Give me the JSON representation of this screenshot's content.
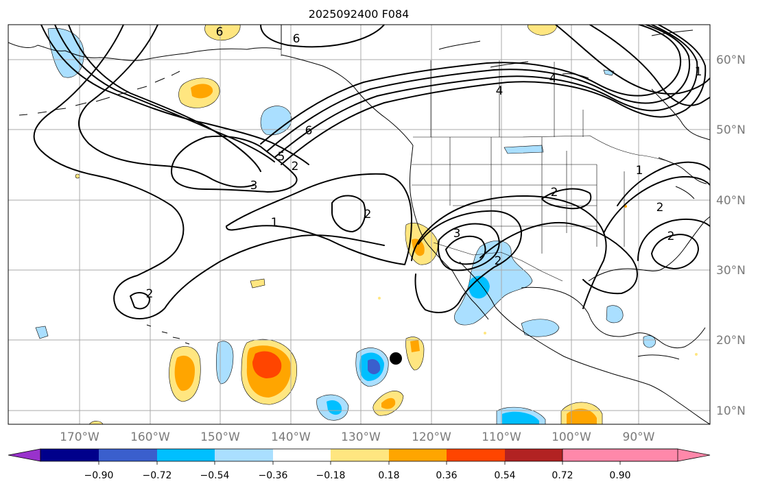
{
  "title": "2025092400 F084",
  "longitude_labels": [
    "170°W",
    "160°W",
    "150°W",
    "140°W",
    "130°W",
    "120°W",
    "110°W",
    "100°W",
    "90°W"
  ],
  "latitude_labels": [
    "60°N",
    "50°N",
    "40°N",
    "30°N",
    "20°N",
    "10°N"
  ],
  "colorbar": {
    "bins": [
      {
        "color": "#9932cc"
      },
      {
        "color": "#00008b"
      },
      {
        "color": "#3a5fcd"
      },
      {
        "color": "#00bfff"
      },
      {
        "color": "#aadfff"
      },
      {
        "color": "#ffffff"
      },
      {
        "color": "#ffe680"
      },
      {
        "color": "#ffa500"
      },
      {
        "color": "#ff4500"
      },
      {
        "color": "#b22222"
      },
      {
        "color": "#ff88aa"
      }
    ],
    "tick_labels": [
      "−0.90",
      "−0.72",
      "−0.54",
      "−0.36",
      "−0.18",
      "0.18",
      "0.36",
      "0.54",
      "0.72",
      "0.90"
    ]
  },
  "contour_labels": [
    "6",
    "6",
    "1",
    "4",
    "5",
    "2",
    "3",
    "1",
    "2",
    "3",
    "2",
    "2",
    "2",
    "1",
    "2",
    "2",
    "4",
    "6"
  ]
}
